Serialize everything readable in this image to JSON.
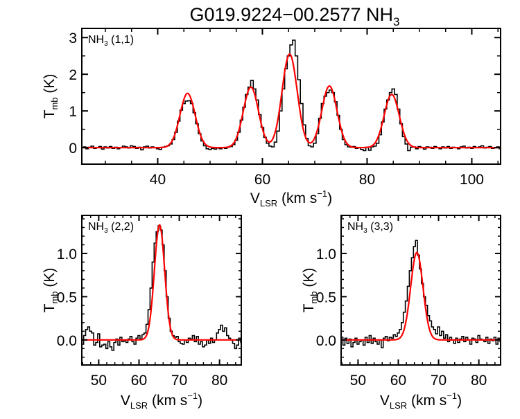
{
  "chart_data": {
    "type": "line",
    "title": "G019.9224−00.2577 NH",
    "title_sub": "3",
    "colors": {
      "observed": "#000000",
      "fit": "#ff0000"
    },
    "panels": [
      {
        "id": "nh3-11",
        "label_main": "NH",
        "label_sub": "3",
        "label_rest": " (1,1)",
        "xlabel": {
          "main": "V",
          "sub": "LSR",
          "rest": " (km s",
          "sup": "−1",
          "end": ")"
        },
        "ylabel": {
          "main": "T",
          "sub": "mb",
          "rest": " (K)"
        },
        "xlim": [
          25.5,
          105.5
        ],
        "ylim": [
          -0.45,
          3.25
        ],
        "xticks": [
          40,
          60,
          80,
          100
        ],
        "xminor": 5,
        "yticks": [
          0,
          1,
          2,
          3
        ],
        "ytick_labels": [
          "0",
          "1",
          "2",
          "3"
        ],
        "yminor": 0.5,
        "observed": {
          "x_start": 26.0,
          "step": 0.5,
          "values": [
            0.02,
            -0.03,
            0.01,
            0.04,
            -0.02,
            0.0,
            0.03,
            -0.04,
            0.02,
            -0.01,
            0.03,
            -0.02,
            0.01,
            -0.03,
            0.0,
            0.04,
            0.02,
            -0.01,
            0.05,
            0.03,
            -0.02,
            0.01,
            -0.06,
            0.02,
            0.04,
            -0.01,
            0.02,
            0.0,
            -0.03,
            -0.05,
            0.01,
            0.03,
            0.05,
            0.1,
            0.22,
            0.42,
            0.72,
            1.02,
            1.2,
            1.27,
            1.28,
            1.2,
            0.95,
            0.65,
            0.38,
            0.18,
            0.05,
            -0.03,
            -0.05,
            -0.02,
            -0.04,
            -0.01,
            -0.03,
            0.0,
            -0.02,
            0.01,
            0.03,
            0.08,
            0.2,
            0.42,
            0.75,
            1.1,
            1.45,
            1.65,
            1.83,
            1.6,
            1.3,
            0.9,
            0.55,
            0.28,
            0.12,
            0.04,
            0.02,
            0.15,
            0.45,
            1.0,
            1.6,
            2.15,
            2.5,
            2.8,
            2.93,
            2.5,
            1.85,
            1.2,
            0.62,
            0.25,
            0.05,
            0.02,
            0.12,
            0.38,
            0.8,
            1.2,
            1.4,
            1.5,
            1.57,
            1.5,
            1.25,
            0.88,
            0.5,
            0.22,
            0.08,
            0.02,
            0.01,
            0.03,
            -0.02,
            0.0,
            -0.05,
            -0.08,
            0.01,
            -0.07,
            0.02,
            0.04,
            0.12,
            0.35,
            0.7,
            1.05,
            1.3,
            1.5,
            1.6,
            1.45,
            1.05,
            0.65,
            0.3,
            0.1,
            -0.08,
            0.01,
            0.02,
            -0.03,
            0.03,
            0.0,
            -0.04,
            0.02,
            0.01,
            -0.02,
            0.03,
            0.0,
            -0.03,
            0.02,
            -0.01,
            0.03,
            -0.02,
            0.01,
            0.0,
            -0.03,
            0.02,
            0.04,
            -0.01,
            0.01,
            -0.02,
            0.03,
            0.0,
            0.02,
            0.05,
            -0.01,
            0.01,
            0.03,
            -0.02,
            0.0,
            0.02,
            -0.03
          ]
        },
        "fit_components": [
          {
            "center": 45.7,
            "amp": 1.48,
            "fwhm": 3.4
          },
          {
            "center": 57.8,
            "amp": 1.65,
            "fwhm": 3.4
          },
          {
            "center": 65.2,
            "amp": 2.55,
            "fwhm": 3.4
          },
          {
            "center": 72.8,
            "amp": 1.68,
            "fwhm": 3.4
          },
          {
            "center": 84.7,
            "amp": 1.45,
            "fwhm": 3.4
          }
        ]
      },
      {
        "id": "nh3-22",
        "label_main": "NH",
        "label_sub": "3",
        "label_rest": " (2,2)",
        "xlabel": {
          "main": "V",
          "sub": "LSR",
          "rest": " (km s",
          "sup": "−1",
          "end": ")"
        },
        "ylabel": {
          "main": "T",
          "sub": "mb",
          "rest": " (K)"
        },
        "xlim": [
          45.8,
          85.4
        ],
        "ylim": [
          -0.29,
          1.44
        ],
        "xticks": [
          50,
          60,
          70,
          80
        ],
        "xminor": 2,
        "yticks": [
          0,
          0.5,
          1.0
        ],
        "ytick_labels": [
          "0.0",
          "0.5",
          "1.0"
        ],
        "yminor": 0.1,
        "observed": {
          "x_start": 46.0,
          "step": 0.5,
          "values": [
            -0.05,
            0.05,
            0.12,
            0.15,
            0.1,
            0.08,
            -0.06,
            -0.03,
            0.07,
            -0.08,
            -0.06,
            -0.05,
            -0.1,
            -0.02,
            -0.08,
            -0.12,
            -0.03,
            0.01,
            -0.06,
            0.03,
            -0.02,
            -0.01,
            -0.03,
            0.01,
            0.04,
            -0.02,
            -0.05,
            0.02,
            0.05,
            0.01,
            0.06,
            0.08,
            0.18,
            0.35,
            0.6,
            0.9,
            1.12,
            1.25,
            1.32,
            1.27,
            1.1,
            0.8,
            0.5,
            0.25,
            0.1,
            0.05,
            0.03,
            0.04,
            -0.02,
            -0.04,
            -0.05,
            0.0,
            -0.03,
            0.02,
            0.01,
            0.05,
            -0.02,
            0.04,
            -0.05,
            -0.02,
            -0.08,
            -0.06,
            0.0,
            -0.04,
            0.02,
            -0.03,
            0.0,
            0.08,
            0.12,
            0.17,
            0.1,
            0.14,
            0.05,
            0.02,
            0.0,
            -0.04,
            -0.1,
            -0.06,
            0.02,
            -0.03
          ]
        },
        "fit_components": [
          {
            "center": 65.1,
            "amp": 1.33,
            "fwhm": 3.0
          }
        ]
      },
      {
        "id": "nh3-33",
        "label_main": "NH",
        "label_sub": "3",
        "label_rest": " (3,3)",
        "xlabel": {
          "main": "V",
          "sub": "LSR",
          "rest": " (km s",
          "sup": "−1",
          "end": ")"
        },
        "ylabel": {
          "main": "T",
          "sub": "mb",
          "rest": " (K)"
        },
        "xlim": [
          45.8,
          85.4
        ],
        "ylim": [
          -0.29,
          1.44
        ],
        "xticks": [
          50,
          60,
          70,
          80
        ],
        "xminor": 2,
        "yticks": [
          0,
          0.5,
          1.0
        ],
        "ytick_labels": [
          "0.0",
          "0.5",
          "1.0"
        ],
        "yminor": 0.1,
        "observed": {
          "x_start": 46.0,
          "step": 0.5,
          "values": [
            0.03,
            -0.06,
            0.02,
            -0.04,
            0.01,
            -0.08,
            -0.03,
            0.02,
            -0.05,
            -0.02,
            0.0,
            -0.06,
            0.03,
            -0.03,
            0.05,
            -0.04,
            0.02,
            -0.02,
            -0.05,
            0.0,
            -0.09,
            0.02,
            0.04,
            -0.01,
            0.03,
            0.02,
            0.06,
            0.04,
            0.08,
            0.12,
            0.2,
            0.32,
            0.45,
            0.62,
            0.8,
            0.95,
            1.08,
            1.15,
            0.98,
            0.82,
            0.65,
            0.5,
            0.4,
            0.28,
            0.22,
            0.15,
            0.12,
            0.07,
            0.15,
            0.05,
            0.1,
            0.02,
            0.06,
            -0.02,
            0.03,
            0.0,
            -0.04,
            0.02,
            -0.03,
            0.01,
            0.04,
            -0.02,
            0.03,
            0.0,
            -0.05,
            0.02,
            0.01,
            -0.03,
            0.05,
            0.01,
            0.0,
            -0.02,
            0.03,
            -0.04,
            0.01,
            -0.01,
            0.03,
            -0.05,
            0.02,
            -0.02
          ]
        },
        "fit_components": [
          {
            "center": 64.6,
            "amp": 1.01,
            "fwhm": 3.6
          }
        ]
      }
    ]
  }
}
